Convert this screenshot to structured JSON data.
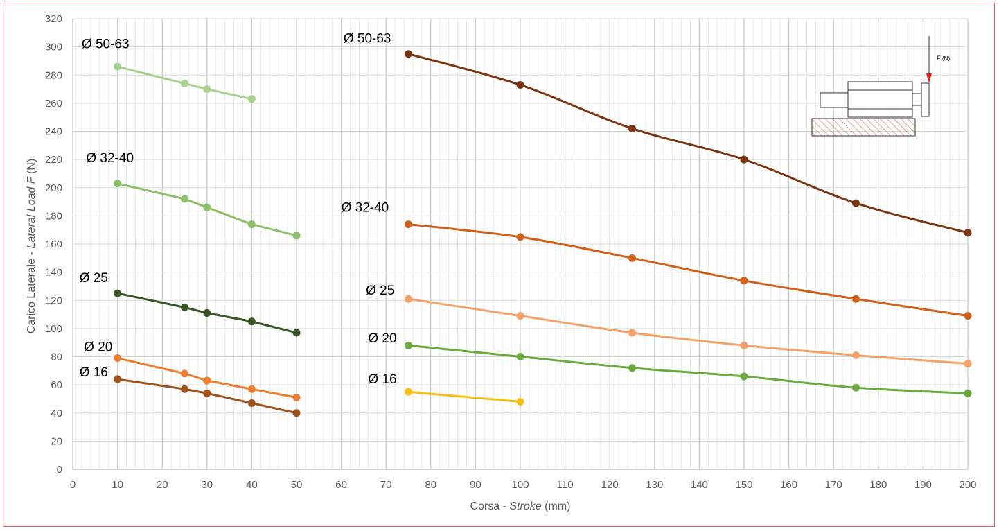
{
  "chart_data": {
    "type": "line",
    "title": "",
    "xlabel": "Corsa - ",
    "xlabel_italic": "Stroke",
    "xlabel_unit": " (mm)",
    "ylabel": "Carico Laterale - ",
    "ylabel_italic": "Lateral Load F",
    "ylabel_unit": " (N)",
    "xlim": [
      0,
      200
    ],
    "ylim": [
      0,
      320
    ],
    "x_major_step": 10,
    "x_minor_step": 2,
    "y_major_step": 20,
    "grid": true,
    "legend": "none",
    "series": [
      {
        "name": "Ø 50-63",
        "color": "#a9d18e",
        "smooth": false,
        "x": [
          10,
          25,
          30,
          40
        ],
        "y": [
          286,
          274,
          270,
          263
        ],
        "label_at": [
          2,
          299
        ]
      },
      {
        "name": "Ø 32-40",
        "color": "#8cc168",
        "smooth": false,
        "x": [
          10,
          25,
          30,
          40,
          50
        ],
        "y": [
          203,
          192,
          186,
          174,
          166
        ],
        "label_at": [
          3,
          218
        ]
      },
      {
        "name": "Ø 25",
        "color": "#375623",
        "smooth": false,
        "x": [
          10,
          25,
          30,
          40,
          50
        ],
        "y": [
          125,
          115,
          111,
          105,
          97
        ],
        "label_at": [
          1.5,
          133
        ]
      },
      {
        "name": "Ø 20",
        "color": "#ed7d31",
        "smooth": false,
        "x": [
          10,
          25,
          30,
          40,
          50
        ],
        "y": [
          79,
          68,
          63,
          57,
          51
        ],
        "label_at": [
          2.5,
          84
        ]
      },
      {
        "name": "Ø 16",
        "color": "#a0521d",
        "smooth": false,
        "x": [
          10,
          25,
          30,
          40,
          50
        ],
        "y": [
          64,
          57,
          54,
          47,
          40
        ],
        "label_at": [
          1.5,
          66
        ]
      },
      {
        "name": "Ø 50-63",
        "color": "#7b3510",
        "smooth": true,
        "x": [
          75,
          100,
          125,
          150,
          175,
          200
        ],
        "y": [
          295,
          273,
          242,
          220,
          189,
          168
        ],
        "label_at": [
          60.5,
          303
        ]
      },
      {
        "name": "Ø 32-40",
        "color": "#d0611a",
        "smooth": true,
        "x": [
          75,
          100,
          125,
          150,
          175,
          200
        ],
        "y": [
          174,
          165,
          150,
          134,
          121,
          109
        ],
        "label_at": [
          60,
          183
        ]
      },
      {
        "name": "Ø 25",
        "color": "#f4a26a",
        "smooth": true,
        "x": [
          75,
          100,
          125,
          150,
          175,
          200
        ],
        "y": [
          121,
          109,
          97,
          88,
          81,
          75
        ],
        "label_at": [
          65.5,
          124
        ]
      },
      {
        "name": "Ø 20",
        "color": "#6aaa3f",
        "smooth": true,
        "x": [
          75,
          100,
          125,
          150,
          175,
          200
        ],
        "y": [
          88,
          80,
          72,
          66,
          58,
          54
        ],
        "label_at": [
          66,
          90
        ]
      },
      {
        "name": "Ø 16",
        "color": "#f5c013",
        "smooth": false,
        "x": [
          75,
          100
        ],
        "y": [
          55,
          48
        ],
        "label_at": [
          66,
          61
        ]
      }
    ],
    "inset": {
      "force_label": "F",
      "force_unit": "(N)",
      "arrow_color": "#e02020",
      "hatch_color": "#e06060"
    }
  }
}
